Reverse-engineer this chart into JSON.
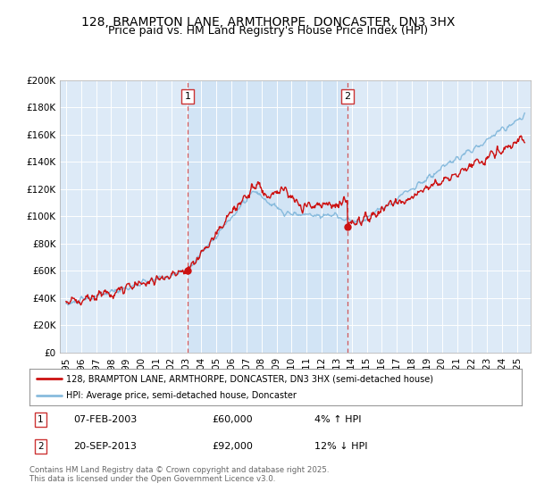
{
  "title": "128, BRAMPTON LANE, ARMTHORPE, DONCASTER, DN3 3HX",
  "subtitle": "Price paid vs. HM Land Registry's House Price Index (HPI)",
  "ylim": [
    0,
    200000
  ],
  "yticks": [
    0,
    20000,
    40000,
    60000,
    80000,
    100000,
    120000,
    140000,
    160000,
    180000,
    200000
  ],
  "ytick_labels": [
    "£0",
    "£20K",
    "£40K",
    "£60K",
    "£80K",
    "£100K",
    "£120K",
    "£140K",
    "£160K",
    "£180K",
    "£200K"
  ],
  "bg_color": "#ddeaf7",
  "bg_color_highlight": "#cce0f5",
  "line1_color": "#cc1111",
  "line2_color": "#88bbdd",
  "marker1_date": 2003.1,
  "marker2_date": 2013.72,
  "marker1_price": 60000,
  "marker2_price": 92000,
  "legend_line1": "128, BRAMPTON LANE, ARMTHORPE, DONCASTER, DN3 3HX (semi-detached house)",
  "legend_line2": "HPI: Average price, semi-detached house, Doncaster",
  "annot1_label": "1",
  "annot1_date": "07-FEB-2003",
  "annot1_price": "£60,000",
  "annot1_pct": "4% ↑ HPI",
  "annot2_label": "2",
  "annot2_date": "20-SEP-2013",
  "annot2_price": "£92,000",
  "annot2_pct": "12% ↓ HPI",
  "footer": "Contains HM Land Registry data © Crown copyright and database right 2025.\nThis data is licensed under the Open Government Licence v3.0.",
  "title_fontsize": 10,
  "subtitle_fontsize": 9,
  "tick_fontsize": 7.5
}
